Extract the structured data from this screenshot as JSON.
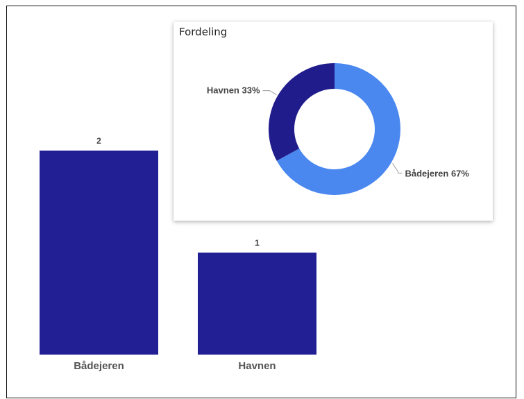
{
  "chart_data": [
    {
      "type": "bar",
      "categories": [
        "Bådejeren",
        "Havnen"
      ],
      "values": [
        2,
        1
      ],
      "data_labels": [
        "2",
        "1"
      ],
      "title": "",
      "xlabel": "",
      "ylabel": "",
      "ylim": [
        0,
        2
      ],
      "grid": false,
      "colors": {
        "bar": "#221E94"
      }
    },
    {
      "type": "pie",
      "title": "Fordeling",
      "labels": [
        "Bådejeren",
        "Havnen"
      ],
      "values": [
        67,
        33
      ],
      "slice_labels": [
        "Bådejeren 67%",
        "Havnen 33%"
      ],
      "donut": true,
      "colors": [
        "#4A88F0",
        "#201C8C"
      ],
      "label_line_color": "#999999"
    }
  ]
}
